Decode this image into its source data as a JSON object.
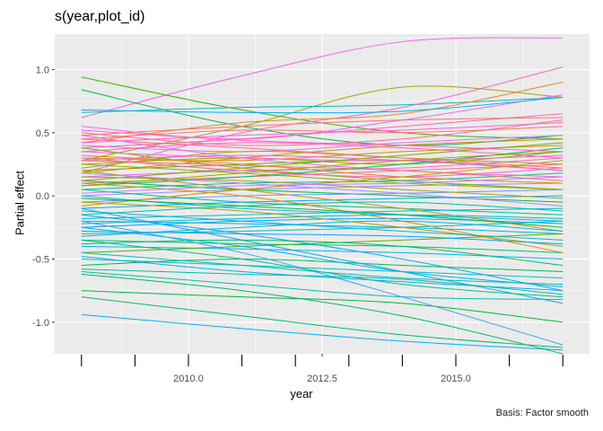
{
  "chart_data": {
    "type": "line",
    "title": "s(year,plot_id)",
    "xlabel": "year",
    "ylabel": "Partial effect",
    "caption": "Basis: Factor smooth",
    "xlim": [
      2007.5,
      2017.5
    ],
    "ylim": [
      -1.25,
      1.28
    ],
    "x_ticks": [
      2010.0,
      2012.5,
      2015.0
    ],
    "x_tick_labels": [
      "2010.0",
      "2012.5",
      "2015.0"
    ],
    "y_ticks": [
      -1.0,
      -0.5,
      0.0,
      0.5,
      1.0
    ],
    "y_tick_labels": [
      "-1.0",
      "-0.5",
      "0.0",
      "0.5",
      "1.0"
    ],
    "rug_x": [
      2008,
      2009,
      2010,
      2011,
      2012,
      2013,
      2014,
      2015,
      2016,
      2017
    ],
    "x": [
      2008,
      2011,
      2014,
      2017
    ],
    "grid": true,
    "legend": "none",
    "background": "#EBEBEB",
    "series": [
      {
        "values": [
          0.62,
          0.95,
          1.22,
          1.25
        ],
        "color": "#F564E3"
      },
      {
        "values": [
          0.28,
          0.55,
          0.86,
          0.78
        ],
        "color": "#A3A500"
      },
      {
        "values": [
          0.94,
          0.68,
          0.5,
          0.45
        ],
        "color": "#39B600"
      },
      {
        "values": [
          0.84,
          0.55,
          0.4,
          0.48
        ],
        "color": "#00BB4E"
      },
      {
        "values": [
          0.66,
          0.7,
          0.72,
          0.78
        ],
        "color": "#00BFC4"
      },
      {
        "values": [
          0.55,
          0.45,
          0.6,
          0.8
        ],
        "color": "#E76BF3"
      },
      {
        "values": [
          0.18,
          0.5,
          0.7,
          1.02
        ],
        "color": "#FF62BC"
      },
      {
        "values": [
          0.42,
          0.58,
          0.65,
          0.9
        ],
        "color": "#E88526"
      },
      {
        "values": [
          0.68,
          0.66,
          0.67,
          0.78
        ],
        "color": "#00B0F6"
      },
      {
        "values": [
          0.5,
          0.4,
          0.45,
          0.6
        ],
        "color": "#FF6C91"
      },
      {
        "values": [
          0.45,
          0.52,
          0.5,
          0.55
        ],
        "color": "#F8766D"
      },
      {
        "values": [
          0.4,
          0.35,
          0.42,
          0.48
        ],
        "color": "#DB72FB"
      },
      {
        "values": [
          0.35,
          0.42,
          0.38,
          0.3
        ],
        "color": "#FF61C3"
      },
      {
        "values": [
          0.3,
          0.28,
          0.35,
          0.4
        ],
        "color": "#D39200"
      },
      {
        "values": [
          0.25,
          0.3,
          0.25,
          0.35
        ],
        "color": "#93AA00"
      },
      {
        "values": [
          0.2,
          0.25,
          0.28,
          0.2
        ],
        "color": "#5EB300"
      },
      {
        "values": [
          0.15,
          0.2,
          0.22,
          0.3
        ],
        "color": "#F564E3"
      },
      {
        "values": [
          0.1,
          0.15,
          0.2,
          0.25
        ],
        "color": "#FF6C91"
      },
      {
        "values": [
          0.05,
          0.1,
          0.12,
          0.18
        ],
        "color": "#00C1A3"
      },
      {
        "values": [
          0.0,
          0.05,
          0.08,
          0.1
        ],
        "color": "#9590FF"
      },
      {
        "values": [
          0.48,
          0.3,
          0.2,
          0.15
        ],
        "color": "#E76BF3"
      },
      {
        "values": [
          0.22,
          0.35,
          0.3,
          0.25
        ],
        "color": "#BA9E00"
      },
      {
        "values": [
          0.12,
          0.05,
          0.0,
          -0.05
        ],
        "color": "#00BA38"
      },
      {
        "values": [
          -0.05,
          0.0,
          0.02,
          0.05
        ],
        "color": "#619CFF"
      },
      {
        "values": [
          -0.1,
          -0.05,
          -0.02,
          0.0
        ],
        "color": "#00A9FF"
      },
      {
        "values": [
          0.38,
          0.22,
          0.12,
          0.05
        ],
        "color": "#7CAE00"
      },
      {
        "values": [
          0.3,
          0.2,
          0.15,
          0.22
        ],
        "color": "#FF62BC"
      },
      {
        "values": [
          0.18,
          0.3,
          0.4,
          0.45
        ],
        "color": "#DE8C00"
      },
      {
        "values": [
          0.28,
          0.32,
          0.28,
          0.2
        ],
        "color": "#FD61D1"
      },
      {
        "values": [
          0.08,
          0.15,
          0.25,
          0.38
        ],
        "color": "#00BD5C"
      },
      {
        "values": [
          0.05,
          -0.05,
          -0.1,
          -0.15
        ],
        "color": "#00C08B"
      },
      {
        "values": [
          -0.18,
          -0.15,
          -0.12,
          -0.1
        ],
        "color": "#00BCD8"
      },
      {
        "values": [
          -0.2,
          -0.22,
          -0.25,
          -0.3
        ],
        "color": "#00B8E7"
      },
      {
        "values": [
          -0.25,
          -0.2,
          -0.18,
          -0.22
        ],
        "color": "#00A5FF"
      },
      {
        "values": [
          -0.3,
          -0.28,
          -0.25,
          -0.2
        ],
        "color": "#00C0B8"
      },
      {
        "values": [
          -0.35,
          -0.38,
          -0.4,
          -0.45
        ],
        "color": "#00BF7D"
      },
      {
        "values": [
          -0.4,
          -0.42,
          -0.45,
          -0.5
        ],
        "color": "#00B4F0"
      },
      {
        "values": [
          -0.45,
          -0.4,
          -0.35,
          -0.3
        ],
        "color": "#53B400"
      },
      {
        "values": [
          -0.5,
          -0.55,
          -0.6,
          -0.65
        ],
        "color": "#00BFC4"
      },
      {
        "values": [
          -0.15,
          -0.3,
          -0.5,
          -0.75
        ],
        "color": "#00ADFA"
      },
      {
        "values": [
          -0.6,
          -0.7,
          -0.8,
          -0.82
        ],
        "color": "#00C1AA"
      },
      {
        "values": [
          -0.55,
          -0.5,
          -0.55,
          -0.6
        ],
        "color": "#00BB4E"
      },
      {
        "values": [
          -0.75,
          -0.8,
          -0.85,
          -1.0
        ],
        "color": "#00BA38"
      },
      {
        "values": [
          -0.8,
          -0.95,
          -1.1,
          -1.2
        ],
        "color": "#00BE67"
      },
      {
        "values": [
          -0.94,
          -1.05,
          -1.15,
          -1.22
        ],
        "color": "#00B0F6"
      },
      {
        "values": [
          -0.2,
          -0.45,
          -0.8,
          -1.18
        ],
        "color": "#35A2FF"
      },
      {
        "values": [
          -0.1,
          -0.35,
          -0.6,
          -0.85
        ],
        "color": "#00A9FF"
      },
      {
        "values": [
          -0.35,
          -0.5,
          -0.7,
          -0.8
        ],
        "color": "#00C08B"
      },
      {
        "values": [
          -0.62,
          -0.75,
          -0.95,
          -1.25
        ],
        "color": "#00BD5C"
      },
      {
        "values": [
          0.2,
          0.05,
          -0.1,
          -0.28
        ],
        "color": "#C49A00"
      },
      {
        "values": [
          -0.05,
          -0.12,
          -0.25,
          -0.4
        ],
        "color": "#ABA300"
      },
      {
        "values": [
          0.1,
          0.0,
          -0.2,
          -0.45
        ],
        "color": "#E08B00"
      },
      {
        "values": [
          0.0,
          -0.1,
          -0.15,
          -0.2
        ],
        "color": "#00BAE0"
      },
      {
        "values": [
          -0.25,
          -0.4,
          -0.6,
          -0.72
        ],
        "color": "#00B4F0"
      },
      {
        "values": [
          -0.45,
          -0.55,
          -0.65,
          -0.7
        ],
        "color": "#00C0B8"
      },
      {
        "values": [
          0.45,
          0.38,
          0.3,
          0.22
        ],
        "color": "#FF6A98"
      },
      {
        "values": [
          0.35,
          0.3,
          0.28,
          0.32
        ],
        "color": "#F763E0"
      },
      {
        "values": [
          0.25,
          0.18,
          0.1,
          0.05
        ],
        "color": "#8FAA00"
      },
      {
        "values": [
          0.15,
          0.12,
          0.05,
          -0.02
        ],
        "color": "#B79F00"
      },
      {
        "values": [
          -0.12,
          -0.2,
          -0.28,
          -0.35
        ],
        "color": "#00BCD8"
      },
      {
        "values": [
          -0.28,
          -0.3,
          -0.32,
          -0.38
        ],
        "color": "#00A5FF"
      },
      {
        "values": [
          -0.38,
          -0.35,
          -0.4,
          -0.55
        ],
        "color": "#00BE67"
      },
      {
        "values": [
          0.32,
          0.25,
          0.15,
          0.1
        ],
        "color": "#EA8331"
      },
      {
        "values": [
          0.08,
          0.18,
          0.28,
          0.35
        ],
        "color": "#9DA700"
      },
      {
        "values": [
          0.42,
          0.48,
          0.52,
          0.58
        ],
        "color": "#FA62DB"
      },
      {
        "values": [
          0.38,
          0.45,
          0.55,
          0.65
        ],
        "color": "#FF64B0"
      },
      {
        "values": [
          0.48,
          0.55,
          0.6,
          0.62
        ],
        "color": "#F8766D"
      },
      {
        "values": [
          0.12,
          0.22,
          0.32,
          0.42
        ],
        "color": "#7CAE00"
      },
      {
        "values": [
          -0.08,
          0.05,
          0.15,
          0.28
        ],
        "color": "#CD9600"
      },
      {
        "values": [
          0.02,
          0.08,
          0.1,
          0.15
        ],
        "color": "#C77CFF"
      },
      {
        "values": [
          -0.15,
          -0.08,
          -0.05,
          -0.12
        ],
        "color": "#00C19C"
      },
      {
        "values": [
          -0.22,
          -0.18,
          -0.15,
          -0.18
        ],
        "color": "#00BFC4"
      },
      {
        "values": [
          -0.32,
          -0.25,
          -0.2,
          -0.28
        ],
        "color": "#00B8E7"
      },
      {
        "values": [
          0.52,
          0.44,
          0.4,
          0.35
        ],
        "color": "#FF61C9"
      },
      {
        "values": [
          0.18,
          0.1,
          0.02,
          -0.08
        ],
        "color": "#A58AFF"
      },
      {
        "values": [
          0.28,
          0.24,
          0.2,
          0.12
        ],
        "color": "#F17E4F"
      },
      {
        "values": [
          -0.02,
          -0.08,
          -0.15,
          -0.25
        ],
        "color": "#00BA42"
      },
      {
        "values": [
          -0.48,
          -0.6,
          -0.68,
          -0.75
        ],
        "color": "#00AFF6"
      },
      {
        "values": [
          -0.58,
          -0.62,
          -0.66,
          -0.78
        ],
        "color": "#00C1A3"
      }
    ]
  }
}
